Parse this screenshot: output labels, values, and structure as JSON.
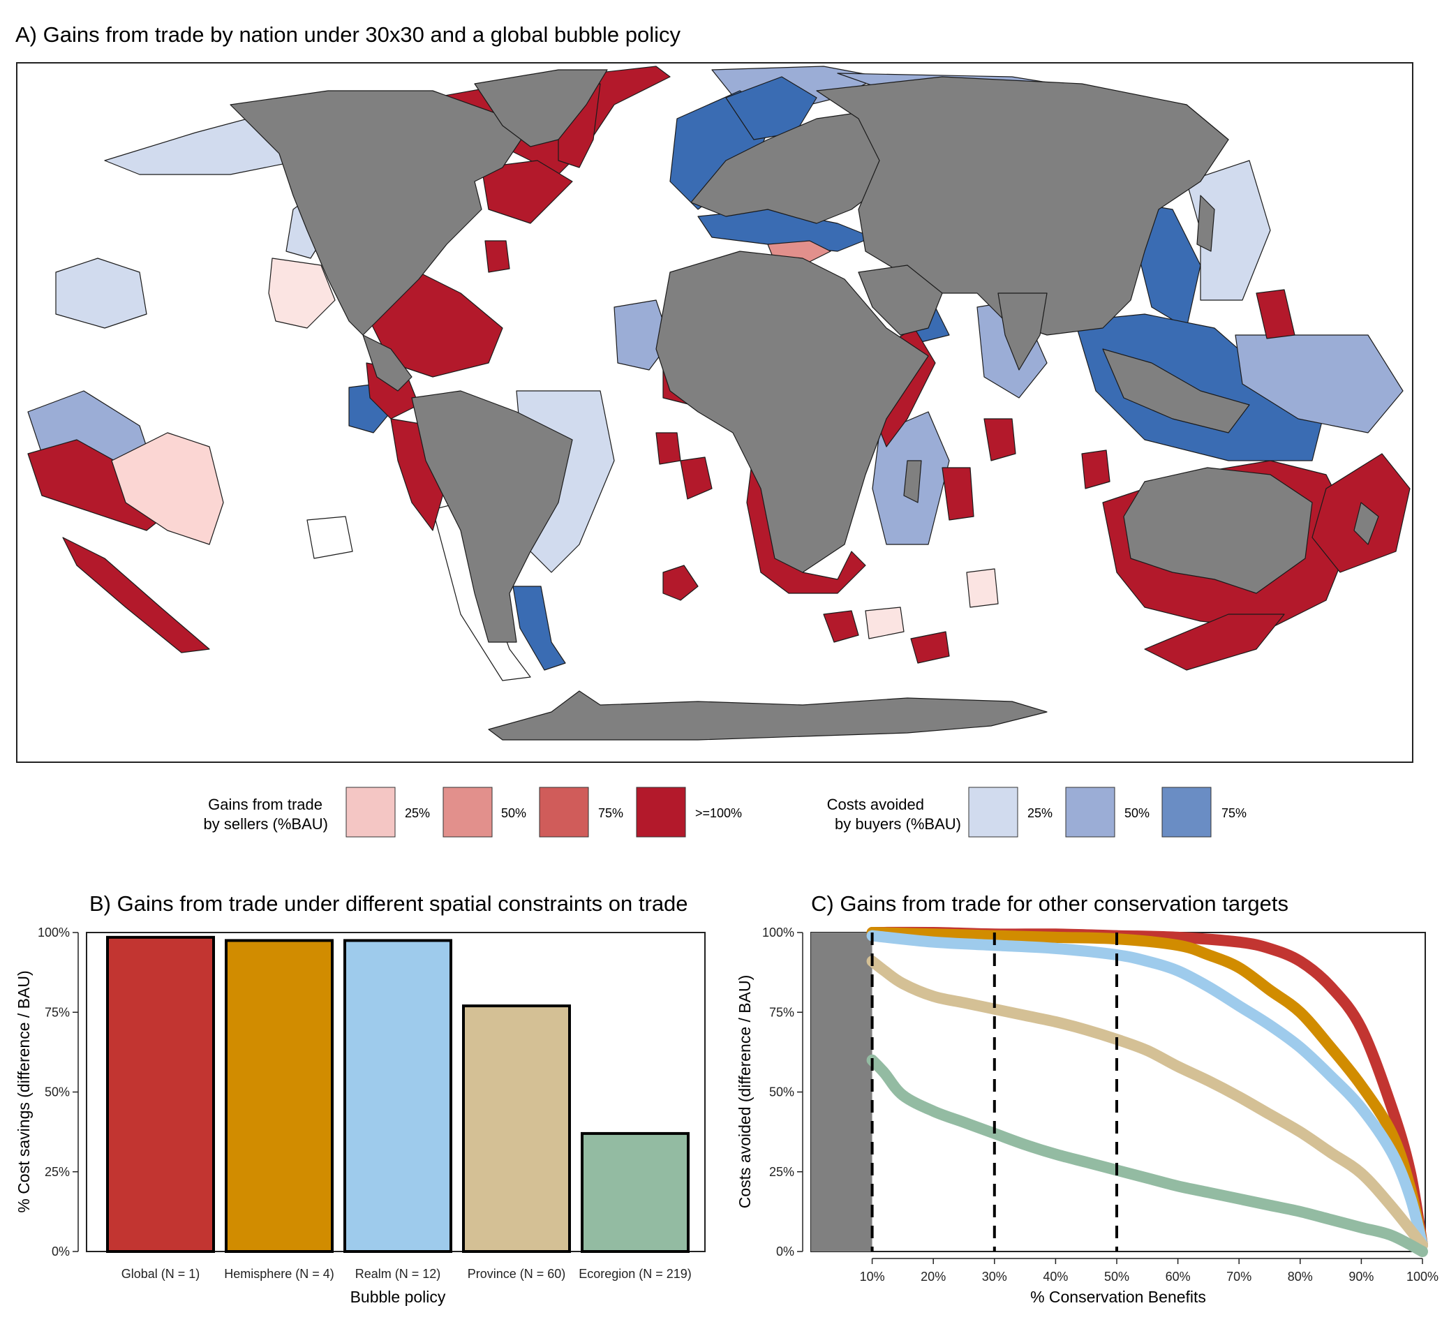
{
  "panel_a": {
    "title": "A) Gains from trade by nation under 30x30 and a global bubble policy",
    "land_color": "#808080",
    "legend_sellers": {
      "title_line1": "Gains from trade",
      "title_line2": "by sellers (%BAU)",
      "items": [
        {
          "label": "25%",
          "color": "#f4c6c4"
        },
        {
          "label": "50%",
          "color": "#e2908c"
        },
        {
          "label": "75%",
          "color": "#d05c5a"
        },
        {
          "label": ">=100%",
          "color": "#b3192b"
        }
      ]
    },
    "legend_buyers": {
      "title_line1": "Costs avoided",
      "title_line2": "by buyers (%BAU)",
      "items": [
        {
          "label": "25%",
          "color": "#d1dbee"
        },
        {
          "label": "50%",
          "color": "#9badd6"
        },
        {
          "label": "75%",
          "color": "#6a8dc4"
        }
      ]
    }
  },
  "chart_data": [
    {
      "type": "bar",
      "title": "B) Gains from trade under different spatial constraints on trade",
      "xlabel": "Bubble policy",
      "ylabel": "% Cost savings (difference / BAU)",
      "ylim": [
        0,
        100
      ],
      "yticks": [
        "0%",
        "25%",
        "50%",
        "75%",
        "100%"
      ],
      "categories": [
        "Global (N = 1)",
        "Hemisphere (N = 4)",
        "Realm (N = 12)",
        "Province (N = 60)",
        "Ecoregion (N = 219)"
      ],
      "values": [
        98.5,
        97.5,
        97.5,
        77,
        37
      ],
      "colors": [
        "#c23531",
        "#d18c00",
        "#9ecbec",
        "#d4c095",
        "#93bba2"
      ]
    },
    {
      "type": "line",
      "title": "C) Gains from trade for other conservation targets",
      "xlabel": "% Conservation Benefits",
      "ylabel": "Costs avoided (difference / BAU)",
      "xlim": [
        0,
        100
      ],
      "ylim": [
        0,
        100
      ],
      "xticks": [
        "10%",
        "20%",
        "30%",
        "40%",
        "50%",
        "60%",
        "70%",
        "80%",
        "90%",
        "100%"
      ],
      "yticks": [
        "0%",
        "25%",
        "50%",
        "75%",
        "100%"
      ],
      "shaded_region": [
        0,
        10
      ],
      "dashed_lines_x": [
        10,
        30,
        50
      ],
      "series": [
        {
          "color": "#c23531",
          "x": [
            10,
            20,
            30,
            40,
            50,
            60,
            70,
            75,
            80,
            85,
            90,
            95,
            98,
            100
          ],
          "y": [
            100,
            100,
            99.5,
            99.5,
            99,
            98.5,
            97,
            95,
            91,
            83,
            70,
            45,
            25,
            2
          ]
        },
        {
          "color": "#d18c00",
          "x": [
            10,
            20,
            30,
            40,
            50,
            60,
            65,
            70,
            75,
            80,
            85,
            90,
            95,
            98,
            100
          ],
          "y": [
            100,
            99.5,
            99,
            98.5,
            98,
            96,
            93,
            89,
            82,
            75,
            64,
            52,
            37,
            20,
            2
          ]
        },
        {
          "color": "#9ecbec",
          "x": [
            10,
            20,
            30,
            40,
            50,
            55,
            60,
            65,
            70,
            75,
            80,
            85,
            90,
            95,
            98,
            100
          ],
          "y": [
            99,
            97,
            96,
            95,
            93,
            91,
            88,
            83,
            77,
            71,
            64,
            55,
            45,
            31,
            17,
            2
          ]
        },
        {
          "color": "#d4c095",
          "x": [
            10,
            12,
            15,
            20,
            25,
            30,
            35,
            40,
            45,
            50,
            55,
            60,
            65,
            70,
            75,
            80,
            85,
            90,
            95,
            100
          ],
          "y": [
            91,
            88,
            84,
            80,
            78,
            76,
            74,
            72,
            69.5,
            66.5,
            63,
            58,
            53.5,
            48.5,
            43,
            37.5,
            31,
            24.5,
            14,
            2
          ]
        },
        {
          "color": "#93bba2",
          "x": [
            10,
            12,
            15,
            20,
            25,
            30,
            35,
            40,
            45,
            50,
            55,
            60,
            65,
            70,
            75,
            80,
            85,
            90,
            95,
            100
          ],
          "y": [
            60,
            56,
            49,
            44,
            40.5,
            37,
            33.5,
            30.5,
            28,
            25.5,
            23,
            20.5,
            18.5,
            16.5,
            14.5,
            12.5,
            10,
            7.5,
            5,
            0
          ]
        }
      ]
    }
  ]
}
